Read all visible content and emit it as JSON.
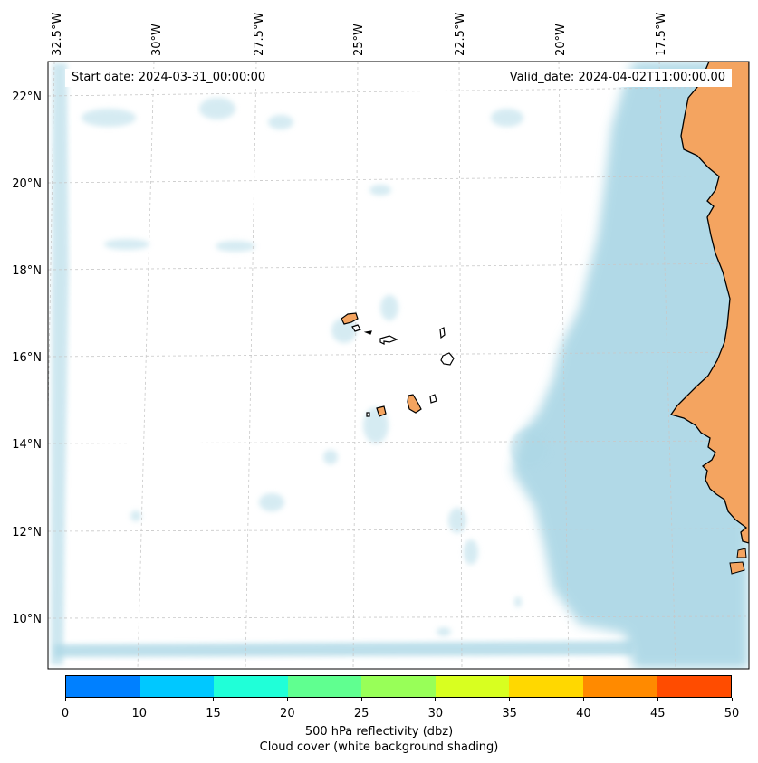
{
  "map": {
    "start_date": "Start date: 2024-03-31_00:00:00",
    "valid_date": "Valid_date: 2024-04-02T11:00:00.00",
    "lon_labels": [
      "32.5°W",
      "30°W",
      "27.5°W",
      "25°W",
      "22.5°W",
      "20°W",
      "17.5°W"
    ],
    "lat_labels": [
      "22°N",
      "20°N",
      "18°N",
      "16°N",
      "14°N",
      "12°N",
      "10°N"
    ],
    "colors": {
      "land": "#f4a460",
      "cloud": "#add8e6",
      "ocean": "#ffffff",
      "grid": "#c8c8c8"
    }
  },
  "colorbar": {
    "colors": [
      "#0080ff",
      "#00c8ff",
      "#20ffd8",
      "#60ff90",
      "#98ff58",
      "#d8ff20",
      "#ffd800",
      "#ff8a00",
      "#ff4c00"
    ],
    "ticks": [
      "0",
      "10",
      "15",
      "20",
      "25",
      "30",
      "35",
      "40",
      "45",
      "50"
    ],
    "label_line1": "500 hPa reflectivity (dbz)",
    "label_line2": "Cloud cover (white background shading)"
  }
}
